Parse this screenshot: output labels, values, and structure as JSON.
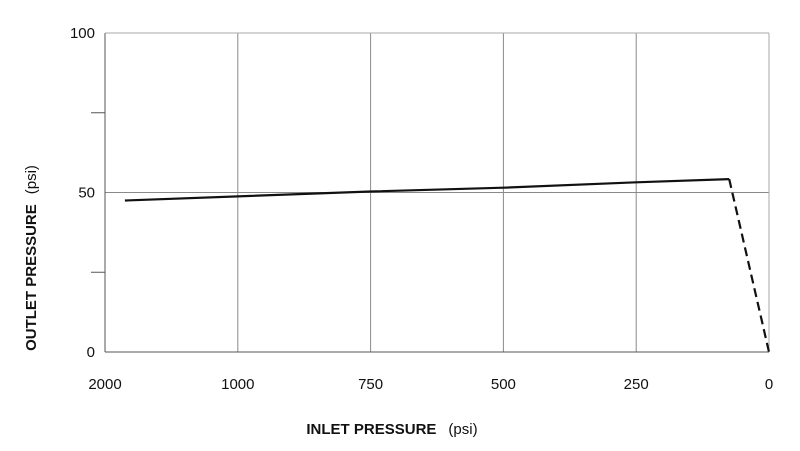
{
  "chart_data": {
    "type": "line",
    "title": "",
    "xlabel": {
      "main": "INLET PRESSURE",
      "unit": "(psi)"
    },
    "ylabel": {
      "main": "OUTLET PRESSURE",
      "unit": "(psi)"
    },
    "x_ticks": [
      "2000",
      "1000",
      "750",
      "500",
      "250",
      "0"
    ],
    "y_ticks": [
      "0",
      "50",
      "100"
    ],
    "ylim": [
      0,
      100
    ],
    "grid": true,
    "series": [
      {
        "style": "solid",
        "points": [
          {
            "x": 1850,
            "y": 47.5
          },
          {
            "x": 750,
            "y": 50.3
          },
          {
            "x": 500,
            "y": 51.5
          },
          {
            "x": 250,
            "y": 53.2
          },
          {
            "x": 75,
            "y": 54.2
          }
        ]
      },
      {
        "style": "dashed",
        "points": [
          {
            "x": 75,
            "y": 54.2
          },
          {
            "x": 0,
            "y": 0
          }
        ]
      }
    ]
  }
}
